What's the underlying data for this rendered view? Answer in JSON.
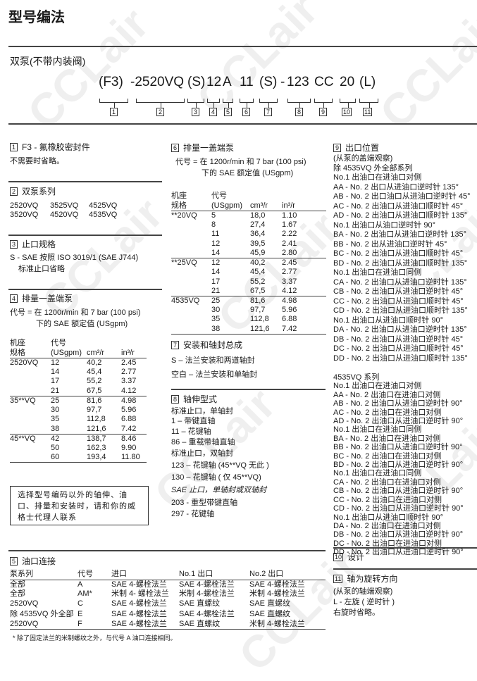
{
  "page_title": "型号编法",
  "subtitle": "双泵(不带内装阀)",
  "watermark": "CCLair",
  "model_code": {
    "segments": [
      "(F3)",
      "-2520VQ",
      "(S)",
      "12",
      "A",
      "11",
      "(S)",
      "-",
      "123",
      "CC",
      "20",
      "(L)"
    ],
    "boxes": [
      "1",
      "2",
      "3",
      "4",
      "5",
      "6",
      "7",
      "8",
      "9",
      "10",
      "11"
    ]
  },
  "s1": {
    "num": "1",
    "title": "F3 - 氟橡胶密封件",
    "text": "不需要时省略。"
  },
  "s2": {
    "num": "2",
    "title": "双泵系列",
    "row1": [
      "2520VQ",
      "3525VQ",
      "4525VQ"
    ],
    "row2": [
      "3520VQ",
      "4520VQ",
      "4535VQ"
    ]
  },
  "s3": {
    "num": "3",
    "title": "止口规格",
    "line1": "S - SAE 按照 ISO 3019/1 (SAE J744)",
    "line2": "标准止口省略"
  },
  "s4": {
    "num": "4",
    "title": "排量一盖端泵",
    "line1": "代号 =  在 1200r/min 和 7 bar (100 psi)",
    "line2": "下的 SAE 额定值 (USgpm)",
    "headers": [
      [
        "机座",
        "代号",
        "",
        ""
      ],
      [
        "规格",
        "(USgpm)",
        "cm³/r",
        "in³/r"
      ]
    ],
    "groups": [
      {
        "frame": "2520VQ",
        "rows": [
          [
            "12",
            "40,2",
            "2.45"
          ],
          [
            "14",
            "45,4",
            "2.77"
          ],
          [
            "17",
            "55,2",
            "3.37"
          ],
          [
            "21",
            "67,5",
            "4.12"
          ]
        ]
      },
      {
        "frame": "35**VQ",
        "rows": [
          [
            "25",
            "81,6",
            "4.98"
          ],
          [
            "30",
            "97,7",
            "5.96"
          ],
          [
            "35",
            "112,8",
            "6.88"
          ],
          [
            "38",
            "121,6",
            "7.42"
          ]
        ]
      },
      {
        "frame": "45**VQ",
        "rows": [
          [
            "42",
            "138,7",
            "8.46"
          ],
          [
            "50",
            "162,3",
            "9.90"
          ],
          [
            "60",
            "193,4",
            "11.80"
          ]
        ]
      }
    ]
  },
  "note": "选择型号编码以外的轴伸、油口、排量和安装时，请和你的威格士代理人联系",
  "s6": {
    "num": "6",
    "title": "排量一盖端泵",
    "line1": "代号 =  在 1200r/min 和 7 bar (100 psi)",
    "line2": "下的 SAE 额定值 (USgpm)",
    "headers": [
      [
        "机座",
        "代号",
        "",
        ""
      ],
      [
        "规格",
        "(USgpm)",
        "cm³/r",
        "in³/r"
      ]
    ],
    "groups": [
      {
        "frame": "**20VQ",
        "rows": [
          [
            "5",
            "18,0",
            "1.10"
          ],
          [
            "8",
            "27,4",
            "1.67"
          ],
          [
            "11",
            "36,4",
            "2.22"
          ],
          [
            "12",
            "39,5",
            "2.41"
          ],
          [
            "14",
            "45,9",
            "2.80"
          ]
        ]
      },
      {
        "frame": "**25VQ",
        "rows": [
          [
            "12",
            "40,2",
            "2.45"
          ],
          [
            "14",
            "45,4",
            "2.77"
          ],
          [
            "17",
            "55,2",
            "3.37"
          ],
          [
            "21",
            "67,5",
            "4.12"
          ]
        ]
      },
      {
        "frame": "4535VQ",
        "rows": [
          [
            "25",
            "81,6",
            "4.98"
          ],
          [
            "30",
            "97,7",
            "5.96"
          ],
          [
            "35",
            "112,8",
            "6.88"
          ],
          [
            "38",
            "121,6",
            "7.42"
          ]
        ]
      }
    ]
  },
  "s7": {
    "num": "7",
    "title": "安装和轴封总成",
    "line1": "S – 法兰安装和两道轴封",
    "line2": "空白 – 法兰安装和单轴封"
  },
  "s8": {
    "num": "8",
    "title": "轴伸型式",
    "lines": [
      "标准止口，单轴封",
      "1   –  带键直轴",
      "11 –   花键轴",
      "86 –   重载带轴直轴",
      "标准止口，双轴封",
      "123 – 花键轴 (45**VQ 无此 )",
      "130 – 花键轴 ( 仅 45**VQ)",
      "SAE 止口，单轴封或双轴封",
      "203 - 重型带键直轴",
      "297 - 花键轴"
    ]
  },
  "s9": {
    "num": "9",
    "title": "出口位置",
    "lines": [
      "(从泵的盖端观察)",
      "除 4535VQ 外全部系列",
      "No.1 出油口在进油口对侧",
      "AA - No. 2 出口从进油口逆时针 135°",
      "AB - No. 2 出口油口从进油口逆时针 45°",
      "AC - No. 2 出油口从进油口顺时针 45°",
      "AD - No. 2 出油口从进油口顺时针 135°",
      "No.1 出油口从油口逆时针 90°",
      "BA - No. 2 出油口从进油口逆时针 135°",
      "BB - No. 2 出从进油口逆时针 45°",
      "BC - No. 2 出油口从进油口顺时针 45°",
      "BD - No. 2 出油口从进油口顺时针 135°",
      "No.1 出油口在进油口同侧",
      "CA - No. 2 出油口从进油口逆时针 135°",
      "CB - No. 2 出油口从进油口逆时针 45°",
      "CC - No. 2 出油口从进油口顺时针 45°",
      "CD - No. 2 出油口从进油口顺时针 135°",
      "No.1 出油口从进油口顺时针 90°",
      "DA - No. 2 出油口从进油口逆时针 135°",
      "DB - No. 2 出油口从进油口逆时针 45°",
      "DC - No. 2 出油口从进油口顺时针 45°",
      "DD - No. 2 出油口从进油口顺时针 135°"
    ],
    "lines_4535": [
      "4535VQ 系列",
      "No.1 出油口在进油口对侧",
      "AA - No. 2 出油口在进油口对侧",
      "AB - No. 2 出油口从进油口逆时针 90°",
      "AC - No. 2 出油口在进油口对侧",
      "AD - No. 2 出油口从进油口逆时针 90°",
      "No.1 出油口在进油口同侧",
      "BA - No. 2 出油口在进油口对侧",
      "BB - No. 2 出油口从进油口逆时针 90°",
      "BC - No. 2 出油口在进油口对侧",
      "BD - No. 2 出油口从进油口逆时针 90°",
      "No.1 出油口在进油口同侧",
      "CA - No. 2 出油口在进油口对侧",
      "CB - No. 2 出油口从进油口逆时针 90°",
      "CC - No. 2 出油口在进油口对侧",
      "CD - No. 2 出油口从进油口逆时针 90°",
      "No.1 出油口从进油口顺时针 90°",
      "DA - No. 2 出油口在进油口对侧",
      "DB - No. 2 出油口从进油口逆时针 90°",
      "DC - No. 2 出油口在进油口对侧",
      "DD - No. 2 出油口从进油口逆时针 90°"
    ]
  },
  "s10": {
    "num": "10",
    "title": "设计"
  },
  "s11": {
    "num": "11",
    "title": "轴为旋转方向",
    "lines": [
      "(从泵的轴端观察)",
      "L - 左旋 ( 逆时针 )",
      "    右旋时省略。"
    ]
  },
  "s5": {
    "num": "5",
    "title": "油口连接",
    "headers": [
      "泵系列",
      "代号",
      "进口",
      "No.1 出口",
      "No.2 出口"
    ],
    "rows": [
      [
        "全部",
        "A",
        "SAE 4-螺栓法兰",
        "SAE 4-螺栓法兰",
        "SAE 4-螺栓法兰"
      ],
      [
        "全部",
        "AM*",
        "米制 4- 螺栓法兰",
        "米制 4-螺栓法兰",
        "米制 4-螺栓法兰"
      ],
      [
        "2520VQ",
        "C",
        "SAE 4-螺栓法兰",
        "SAE 直螺纹",
        "SAE 直螺纹"
      ],
      [
        "除 4535VQ 外全部",
        "E",
        "SAE 4-螺栓法兰",
        "SAE 4-螺栓法兰",
        "SAE 直螺纹"
      ],
      [
        "2520VQ",
        "F",
        "SAE 4-螺栓法兰",
        "SAE 直螺纹",
        "米制 4-螺栓法兰"
      ]
    ],
    "footnote": "* 除了固定法兰的米制螺纹之外，与代号 A 油口连接相同。"
  }
}
